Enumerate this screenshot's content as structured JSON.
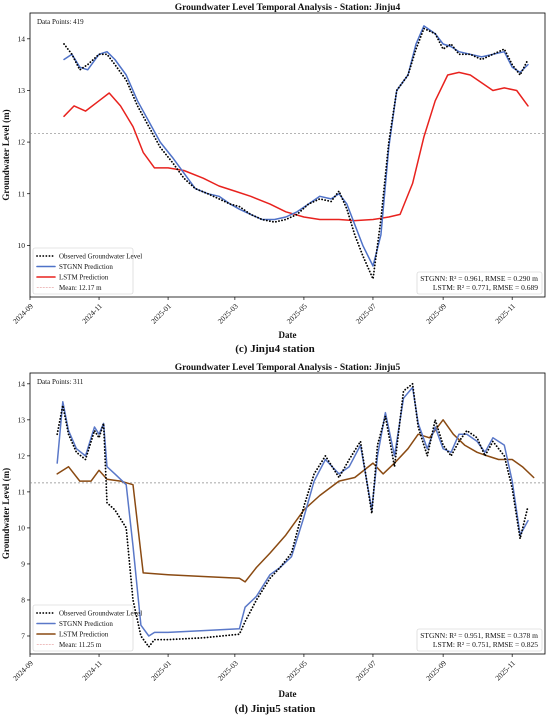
{
  "captions": [
    "(c) Jinju4 station",
    "(d) Jinju5 station"
  ],
  "chart_data": [
    {
      "type": "line",
      "title": "Groundwater Level Temporal Analysis - Station: Jinju4",
      "xlabel": "Date",
      "ylabel": "Groundwater Level (m)",
      "data_points_label": "Data Points: 419",
      "metrics": [
        "STGNN: R² = 0.961, RMSE = 0.290 m",
        "LSTM: R² = 0.771, RMSE = 0.689"
      ],
      "xlim": [
        "2024-09-01",
        "2025-11-30"
      ],
      "ylim": [
        9.0,
        14.5
      ],
      "yticks": [
        10,
        11,
        12,
        13,
        14
      ],
      "xticks": [
        "2024-09",
        "2024-11",
        "2025-01",
        "2025-03",
        "2025-05",
        "2025-07",
        "2025-09",
        "2025-11"
      ],
      "mean": 12.17,
      "legend_position": "lower-left",
      "grid": false,
      "series": [
        {
          "name": "Observed Groundwater Level",
          "style": "dotted",
          "color": "#000000",
          "x": [
            "2024-10-01",
            "2024-10-08",
            "2024-10-15",
            "2024-10-22",
            "2024-11-01",
            "2024-11-08",
            "2024-11-15",
            "2024-11-25",
            "2024-12-05",
            "2024-12-15",
            "2024-12-25",
            "2025-01-05",
            "2025-01-15",
            "2025-01-25",
            "2025-02-05",
            "2025-02-15",
            "2025-02-25",
            "2025-03-05",
            "2025-03-15",
            "2025-03-25",
            "2025-04-05",
            "2025-04-15",
            "2025-04-25",
            "2025-05-05",
            "2025-05-15",
            "2025-05-25",
            "2025-06-01",
            "2025-06-08",
            "2025-06-15",
            "2025-06-22",
            "2025-07-01",
            "2025-07-08",
            "2025-07-15",
            "2025-07-22",
            "2025-08-01",
            "2025-08-08",
            "2025-08-15",
            "2025-08-25",
            "2025-09-01",
            "2025-09-08",
            "2025-09-15",
            "2025-09-25",
            "2025-10-05",
            "2025-10-15",
            "2025-10-25",
            "2025-11-01",
            "2025-11-08",
            "2025-11-15"
          ],
          "y": [
            13.9,
            13.7,
            13.4,
            13.5,
            13.7,
            13.7,
            13.5,
            13.2,
            12.7,
            12.3,
            11.9,
            11.6,
            11.3,
            11.1,
            11.0,
            10.9,
            10.8,
            10.75,
            10.6,
            10.5,
            10.45,
            10.5,
            10.6,
            10.8,
            10.9,
            10.85,
            11.05,
            10.7,
            10.2,
            9.8,
            9.35,
            10.5,
            12.0,
            13.0,
            13.3,
            13.8,
            14.2,
            14.1,
            13.8,
            13.9,
            13.7,
            13.7,
            13.6,
            13.7,
            13.8,
            13.5,
            13.3,
            13.6
          ]
        },
        {
          "name": "STGNN Prediction",
          "style": "solid",
          "color": "#4f72c8",
          "x": [
            "2024-10-01",
            "2024-10-08",
            "2024-10-15",
            "2024-10-22",
            "2024-11-01",
            "2024-11-08",
            "2024-11-15",
            "2024-11-25",
            "2024-12-05",
            "2024-12-15",
            "2024-12-25",
            "2025-01-05",
            "2025-01-15",
            "2025-01-25",
            "2025-02-05",
            "2025-02-15",
            "2025-02-25",
            "2025-03-05",
            "2025-03-15",
            "2025-03-25",
            "2025-04-05",
            "2025-04-15",
            "2025-04-25",
            "2025-05-05",
            "2025-05-15",
            "2025-05-25",
            "2025-06-01",
            "2025-06-08",
            "2025-06-15",
            "2025-06-22",
            "2025-07-01",
            "2025-07-08",
            "2025-07-15",
            "2025-07-22",
            "2025-08-01",
            "2025-08-08",
            "2025-08-15",
            "2025-08-25",
            "2025-09-01",
            "2025-09-08",
            "2025-09-15",
            "2025-09-25",
            "2025-10-05",
            "2025-10-15",
            "2025-10-25",
            "2025-11-01",
            "2025-11-08",
            "2025-11-15"
          ],
          "y": [
            13.6,
            13.7,
            13.45,
            13.4,
            13.7,
            13.75,
            13.6,
            13.3,
            12.8,
            12.4,
            12.0,
            11.7,
            11.4,
            11.1,
            11.0,
            10.95,
            10.8,
            10.7,
            10.6,
            10.5,
            10.5,
            10.55,
            10.65,
            10.8,
            10.95,
            10.9,
            11.0,
            10.8,
            10.4,
            10.0,
            9.6,
            10.2,
            11.9,
            13.0,
            13.3,
            13.9,
            14.25,
            14.1,
            13.9,
            13.85,
            13.75,
            13.7,
            13.65,
            13.7,
            13.75,
            13.45,
            13.35,
            13.5
          ]
        },
        {
          "name": "LSTM Prediction",
          "style": "solid",
          "color": "#e8221e",
          "x": [
            "2024-10-01",
            "2024-10-10",
            "2024-10-20",
            "2024-11-01",
            "2024-11-10",
            "2024-11-20",
            "2024-12-01",
            "2024-12-10",
            "2024-12-20",
            "2025-01-01",
            "2025-01-15",
            "2025-02-01",
            "2025-02-15",
            "2025-03-01",
            "2025-03-15",
            "2025-04-01",
            "2025-04-15",
            "2025-05-01",
            "2025-05-15",
            "2025-06-01",
            "2025-06-15",
            "2025-07-01",
            "2025-07-15",
            "2025-07-25",
            "2025-08-05",
            "2025-08-15",
            "2025-08-25",
            "2025-09-05",
            "2025-09-15",
            "2025-09-25",
            "2025-10-05",
            "2025-10-15",
            "2025-10-25",
            "2025-11-05",
            "2025-11-15"
          ],
          "y": [
            12.5,
            12.7,
            12.6,
            12.8,
            12.95,
            12.7,
            12.3,
            11.8,
            11.5,
            11.5,
            11.45,
            11.3,
            11.15,
            11.05,
            10.95,
            10.8,
            10.65,
            10.55,
            10.5,
            10.5,
            10.48,
            10.5,
            10.55,
            10.6,
            11.2,
            12.1,
            12.8,
            13.3,
            13.35,
            13.3,
            13.15,
            13.0,
            13.05,
            13.0,
            12.7
          ]
        }
      ]
    },
    {
      "type": "line",
      "title": "Groundwater Level Temporal Analysis - Station: Jinju5",
      "xlabel": "Date",
      "ylabel": "Groundwater Level (m)",
      "data_points_label": "Data Points: 311",
      "metrics": [
        "STGNN: R² = 0.951, RMSE = 0.378 m",
        "LSTM: R² = 0.751, RMSE = 0.825"
      ],
      "xlim": [
        "2024-09-01",
        "2025-11-30"
      ],
      "ylim": [
        6.5,
        14.3
      ],
      "yticks": [
        7,
        8,
        9,
        10,
        11,
        12,
        13,
        14
      ],
      "xticks": [
        "2024-09",
        "2024-11",
        "2025-01",
        "2025-03",
        "2025-05",
        "2025-07",
        "2025-09",
        "2025-11"
      ],
      "mean": 11.25,
      "legend_position": "lower-left",
      "grid": false,
      "series": [
        {
          "name": "Observed Groundwater Level",
          "style": "dotted",
          "color": "#000000",
          "x": [
            "2024-09-25",
            "2024-09-30",
            "2024-10-05",
            "2024-10-12",
            "2024-10-20",
            "2024-10-28",
            "2024-11-01",
            "2024-11-05",
            "2024-11-08",
            "2024-11-15",
            "2024-11-25",
            "2024-12-01",
            "2024-12-08",
            "2024-12-15",
            "2024-12-20",
            "2025-01-01",
            "2025-02-01",
            "2025-03-05",
            "2025-03-10",
            "2025-03-20",
            "2025-04-01",
            "2025-04-10",
            "2025-04-20",
            "2025-05-01",
            "2025-05-10",
            "2025-05-20",
            "2025-06-01",
            "2025-06-10",
            "2025-06-20",
            "2025-06-30",
            "2025-07-05",
            "2025-07-12",
            "2025-07-20",
            "2025-07-28",
            "2025-08-05",
            "2025-08-10",
            "2025-08-18",
            "2025-08-25",
            "2025-09-01",
            "2025-09-08",
            "2025-09-15",
            "2025-09-22",
            "2025-10-01",
            "2025-10-08",
            "2025-10-15",
            "2025-10-25",
            "2025-11-01",
            "2025-11-08",
            "2025-11-15"
          ],
          "y": [
            12.6,
            13.4,
            12.6,
            12.1,
            11.9,
            12.7,
            12.5,
            12.9,
            10.7,
            10.5,
            10.0,
            8.0,
            7.0,
            6.7,
            6.9,
            6.9,
            6.95,
            7.05,
            7.4,
            8.0,
            8.6,
            8.9,
            9.3,
            10.6,
            11.5,
            12.0,
            11.4,
            11.9,
            12.4,
            10.4,
            12.3,
            13.1,
            11.7,
            13.8,
            14.0,
            12.8,
            12.0,
            13.0,
            12.3,
            12.0,
            12.4,
            12.7,
            12.5,
            12.0,
            12.4,
            12.0,
            11.1,
            9.7,
            10.6
          ]
        },
        {
          "name": "STGNN Prediction",
          "style": "solid",
          "color": "#5a78c8",
          "x": [
            "2024-09-25",
            "2024-09-30",
            "2024-10-05",
            "2024-10-12",
            "2024-10-20",
            "2024-10-28",
            "2024-11-01",
            "2024-11-05",
            "2024-11-08",
            "2024-11-15",
            "2024-11-25",
            "2024-12-01",
            "2024-12-08",
            "2024-12-15",
            "2024-12-20",
            "2025-01-01",
            "2025-02-01",
            "2025-03-05",
            "2025-03-10",
            "2025-03-20",
            "2025-04-01",
            "2025-04-10",
            "2025-04-20",
            "2025-05-01",
            "2025-05-10",
            "2025-05-20",
            "2025-06-01",
            "2025-06-10",
            "2025-06-20",
            "2025-06-30",
            "2025-07-05",
            "2025-07-12",
            "2025-07-20",
            "2025-07-28",
            "2025-08-05",
            "2025-08-10",
            "2025-08-18",
            "2025-08-25",
            "2025-09-01",
            "2025-09-08",
            "2025-09-15",
            "2025-09-22",
            "2025-10-01",
            "2025-10-08",
            "2025-10-15",
            "2025-10-25",
            "2025-11-01",
            "2025-11-08",
            "2025-11-15"
          ],
          "y": [
            11.8,
            13.5,
            12.7,
            12.2,
            12.0,
            12.8,
            12.6,
            12.9,
            11.7,
            11.5,
            11.2,
            9.5,
            7.3,
            7.0,
            7.1,
            7.1,
            7.15,
            7.2,
            7.8,
            8.1,
            8.7,
            8.9,
            9.2,
            10.3,
            11.3,
            11.9,
            11.5,
            11.7,
            12.3,
            10.5,
            12.0,
            13.2,
            12.0,
            13.6,
            13.9,
            12.9,
            12.2,
            12.8,
            12.2,
            12.1,
            12.6,
            12.6,
            12.4,
            12.1,
            12.5,
            12.3,
            11.3,
            9.8,
            10.2
          ]
        },
        {
          "name": "LSTM Prediction",
          "style": "solid",
          "color": "#8a4a12",
          "x": [
            "2024-09-25",
            "2024-10-05",
            "2024-10-15",
            "2024-10-25",
            "2024-11-01",
            "2024-11-08",
            "2024-11-20",
            "2024-12-01",
            "2024-12-10",
            "2025-01-01",
            "2025-02-01",
            "2025-03-05",
            "2025-03-10",
            "2025-03-20",
            "2025-04-01",
            "2025-04-15",
            "2025-05-01",
            "2025-05-15",
            "2025-06-01",
            "2025-06-15",
            "2025-07-01",
            "2025-07-10",
            "2025-07-20",
            "2025-08-01",
            "2025-08-10",
            "2025-08-20",
            "2025-09-01",
            "2025-09-10",
            "2025-09-20",
            "2025-10-01",
            "2025-10-10",
            "2025-10-20",
            "2025-11-01",
            "2025-11-10",
            "2025-11-20"
          ],
          "y": [
            11.5,
            11.7,
            11.3,
            11.3,
            11.6,
            11.35,
            11.3,
            11.2,
            8.75,
            8.7,
            8.65,
            8.6,
            8.5,
            8.9,
            9.3,
            9.8,
            10.5,
            10.9,
            11.3,
            11.4,
            11.8,
            11.5,
            11.8,
            12.2,
            12.6,
            12.5,
            13.0,
            12.6,
            12.3,
            12.1,
            12.0,
            11.9,
            11.9,
            11.7,
            11.4
          ]
        }
      ]
    }
  ]
}
